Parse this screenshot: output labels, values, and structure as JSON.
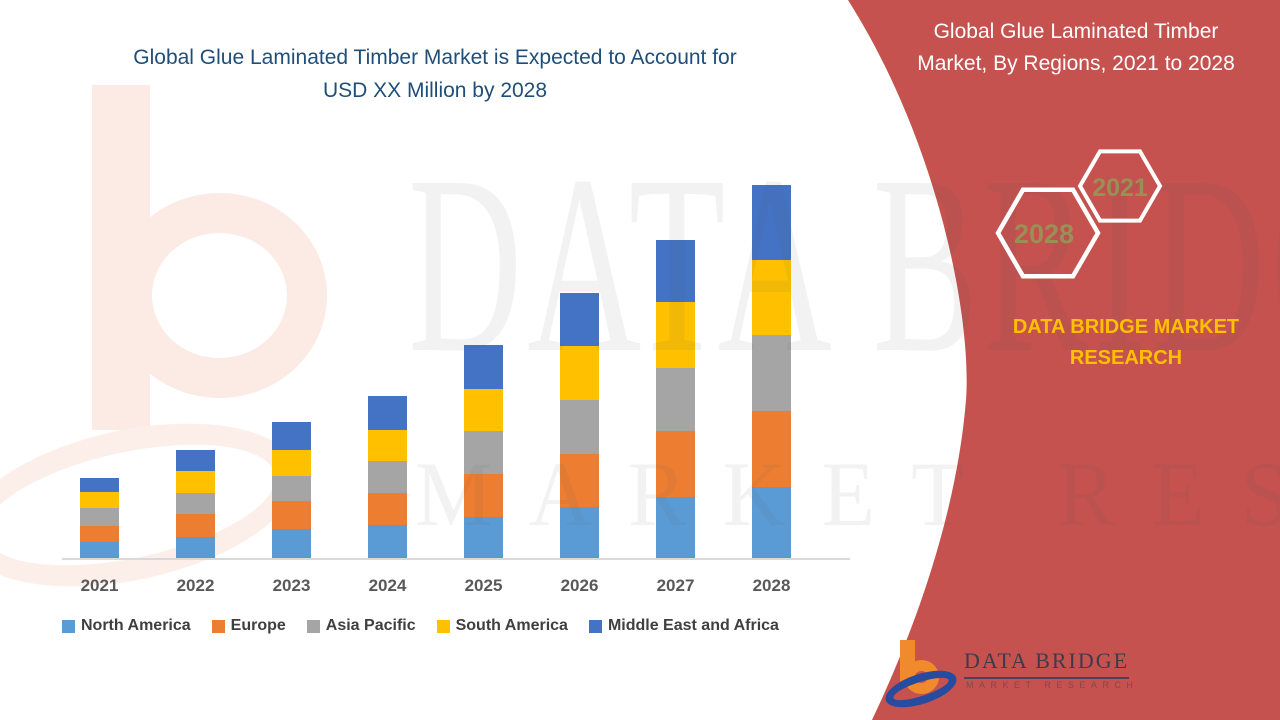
{
  "header": {
    "left_title": "Global Glue Laminated Timber Market is Expected to Account for\nUSD XX Million by 2028",
    "left_title_color": "#1F4E79",
    "right_title": "Global Glue Laminated Timber\nMarket, By Regions, 2021 to 2028"
  },
  "chart_data": {
    "type": "bar",
    "stacked": true,
    "title": "Global Glue Laminated Timber Market, By Regions, 2021 to 2028",
    "categories": [
      "2021",
      "2022",
      "2023",
      "2024",
      "2025",
      "2026",
      "2027",
      "2028"
    ],
    "series": [
      {
        "name": "North America",
        "color": "#5B9BD5",
        "values": [
          16,
          21,
          29,
          33,
          41,
          51,
          61,
          71
        ]
      },
      {
        "name": "Europe",
        "color": "#ED7D31",
        "values": [
          16,
          23,
          28,
          32,
          43,
          53,
          66,
          76
        ]
      },
      {
        "name": "Asia Pacific",
        "color": "#A5A5A5",
        "values": [
          18,
          21,
          25,
          32,
          43,
          54,
          63,
          76
        ]
      },
      {
        "name": "South America",
        "color": "#FFC000",
        "values": [
          16,
          22,
          26,
          31,
          42,
          54,
          66,
          75
        ]
      },
      {
        "name": "Middle East and Africa",
        "color": "#4472C4",
        "values": [
          14,
          21,
          28,
          34,
          44,
          53,
          62,
          75
        ]
      }
    ],
    "value_note": "y-axis not shown in source; values are relative stacked heights (estimated)",
    "xlabel": "",
    "ylabel": "",
    "grid": false,
    "legend_position": "bottom"
  },
  "right_panel": {
    "background_color": "#C5524E",
    "hexagons": [
      {
        "label": "2028"
      },
      {
        "label": "2021"
      }
    ],
    "hexagon_label_color": "#9A8F55",
    "brand_text": "DATA BRIDGE MARKET\nRESEARCH",
    "brand_text_color": "#FFC000"
  },
  "watermark": {
    "line1": "DATA BRIDGE",
    "line2": "MARKET RESEARCH"
  },
  "footer_logo": {
    "title": "DATA BRIDGE",
    "subtitle": "MARKET RESEARCH"
  }
}
